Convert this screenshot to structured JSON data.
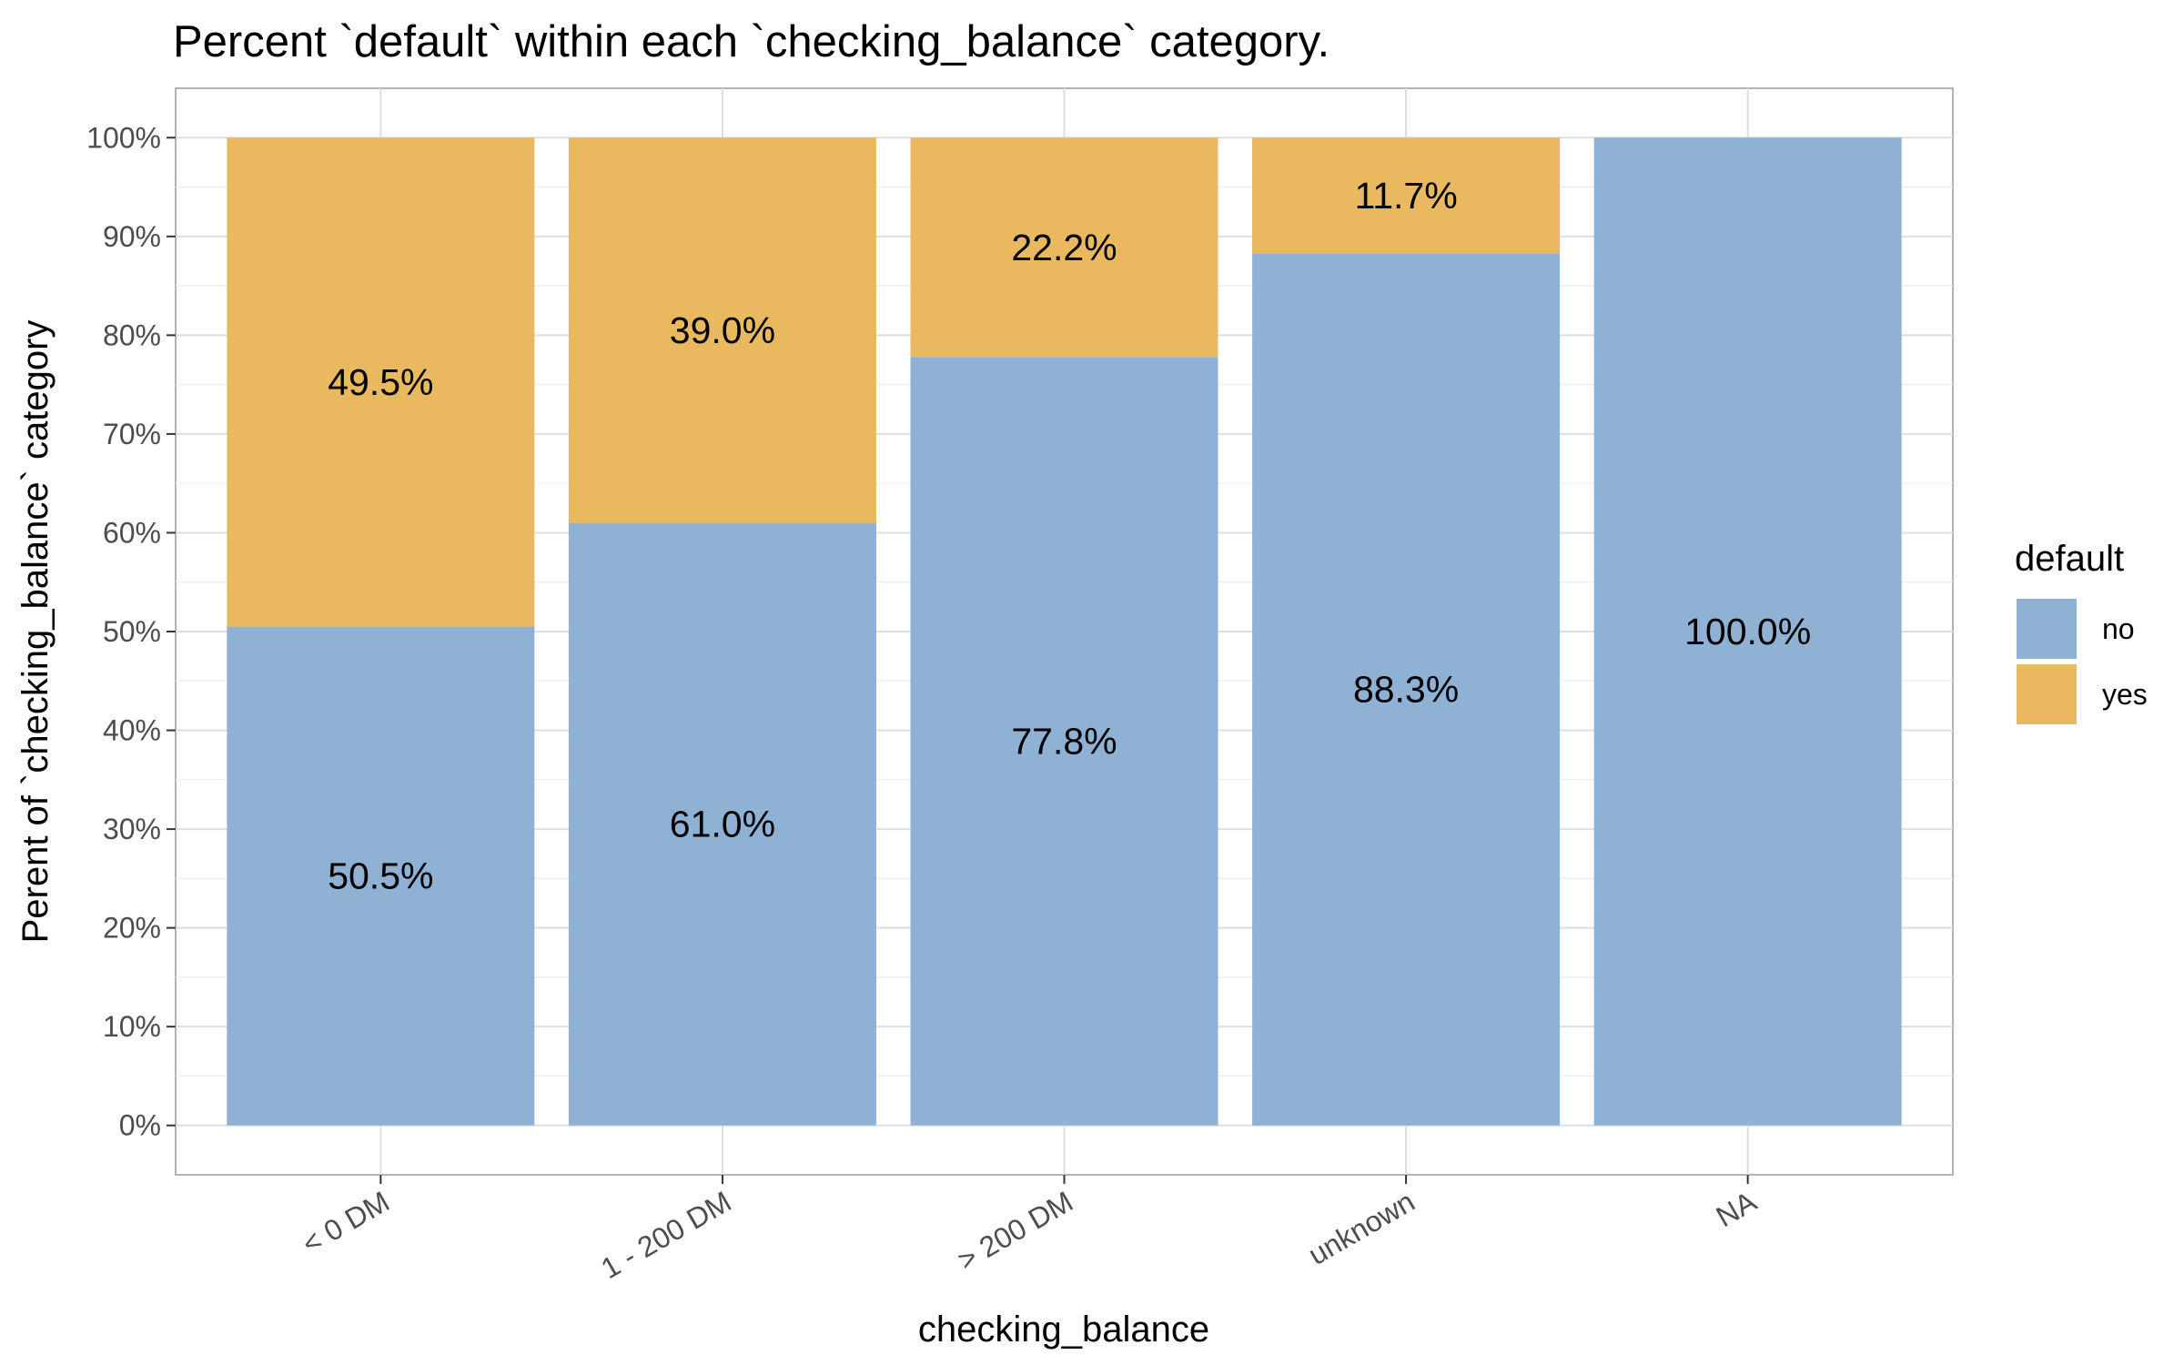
{
  "chart_data": {
    "type": "bar",
    "stacked": true,
    "title": "Percent `default` within each `checking_balance` category.",
    "xlabel": "checking_balance",
    "ylabel": "Perent of `checking_balance` category",
    "categories": [
      "< 0 DM",
      "1 - 200 DM",
      "> 200 DM",
      "unknown",
      "NA"
    ],
    "series": [
      {
        "name": "no",
        "color": "#8eb1d4",
        "values": [
          50.5,
          61.0,
          77.8,
          88.3,
          100.0
        ],
        "labels": [
          "50.5%",
          "61.0%",
          "77.8%",
          "88.3%",
          "100.0%"
        ]
      },
      {
        "name": "yes",
        "color": "#e9b95f",
        "values": [
          49.5,
          39.0,
          22.2,
          11.7,
          0
        ],
        "labels": [
          "49.5%",
          "39.0%",
          "22.2%",
          "11.7%",
          ""
        ]
      }
    ],
    "ylim": [
      -5,
      105
    ],
    "yticks": [
      0,
      10,
      20,
      30,
      40,
      50,
      60,
      70,
      80,
      90,
      100
    ],
    "ytick_labels": [
      "0%",
      "10%",
      "20%",
      "30%",
      "40%",
      "50%",
      "60%",
      "70%",
      "80%",
      "90%",
      "100%"
    ],
    "legend": {
      "title": "default",
      "position": "right",
      "entries": [
        "no",
        "yes"
      ]
    },
    "grid": true
  }
}
